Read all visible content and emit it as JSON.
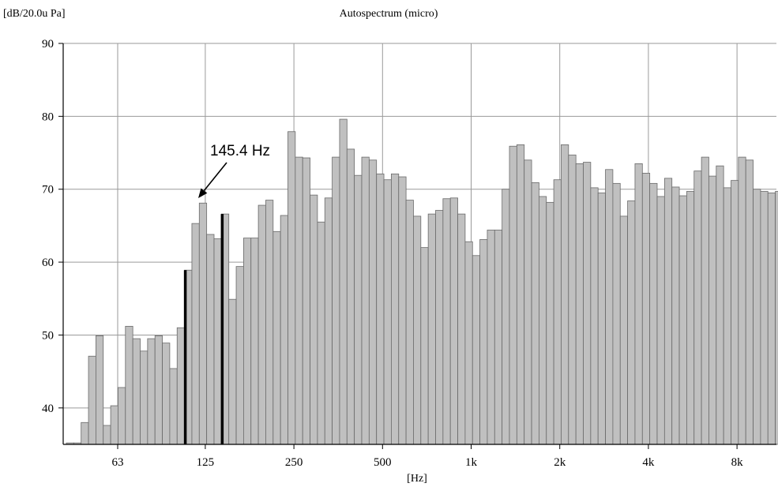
{
  "chart_data": {
    "type": "bar",
    "title": "Autospectrum (micro)",
    "ylabel": "[dB/20.0u Pa]",
    "xlabel": "[Hz]",
    "ylim": [
      35,
      90
    ],
    "yticks": [
      40,
      50,
      60,
      70,
      80,
      90
    ],
    "xscale": "log",
    "xticks": [
      {
        "value": 63,
        "label": "63"
      },
      {
        "value": 125,
        "label": "125"
      },
      {
        "value": 250,
        "label": "250"
      },
      {
        "value": 500,
        "label": "500"
      },
      {
        "value": 1000,
        "label": "1k"
      },
      {
        "value": 2000,
        "label": "2k"
      },
      {
        "value": 4000,
        "label": "4k"
      },
      {
        "value": 8000,
        "label": "8k"
      }
    ],
    "grid": true,
    "bar_color": "#c0c0c0",
    "bands_per_octave": 12,
    "first_band_hz": 43.4,
    "values": [
      35.2,
      35.2,
      38.0,
      47.1,
      49.9,
      37.6,
      40.3,
      42.8,
      51.2,
      49.5,
      47.8,
      49.5,
      49.9,
      48.9,
      45.4,
      51.0,
      58.9,
      65.3,
      68.1,
      63.8,
      63.2,
      66.6,
      54.9,
      59.4,
      63.3,
      63.3,
      67.8,
      68.5,
      64.2,
      66.4,
      77.9,
      74.4,
      74.3,
      69.2,
      65.5,
      68.8,
      74.4,
      79.6,
      75.5,
      71.9,
      74.4,
      74.0,
      72.1,
      71.3,
      72.1,
      71.7,
      68.5,
      66.3,
      62.0,
      66.6,
      67.1,
      68.7,
      68.8,
      66.6,
      62.8,
      60.9,
      63.1,
      64.4,
      64.4,
      70.0,
      75.9,
      76.1,
      74.0,
      70.9,
      69.0,
      68.2,
      71.3,
      76.1,
      74.7,
      73.5,
      73.7,
      70.2,
      69.5,
      72.7,
      70.8,
      66.3,
      68.4,
      73.5,
      72.2,
      70.8,
      69.0,
      71.5,
      70.3,
      69.1,
      69.7,
      72.5,
      74.4,
      71.8,
      73.2,
      70.2,
      71.2,
      74.4,
      74.0,
      70.0,
      69.7,
      69.5,
      69.7
    ],
    "markers": [
      {
        "band_index": 16,
        "value": 58.9
      },
      {
        "band_index": 21,
        "value": 66.6
      }
    ],
    "annotation": {
      "text": "145.4 Hz",
      "band_index": 18
    }
  }
}
